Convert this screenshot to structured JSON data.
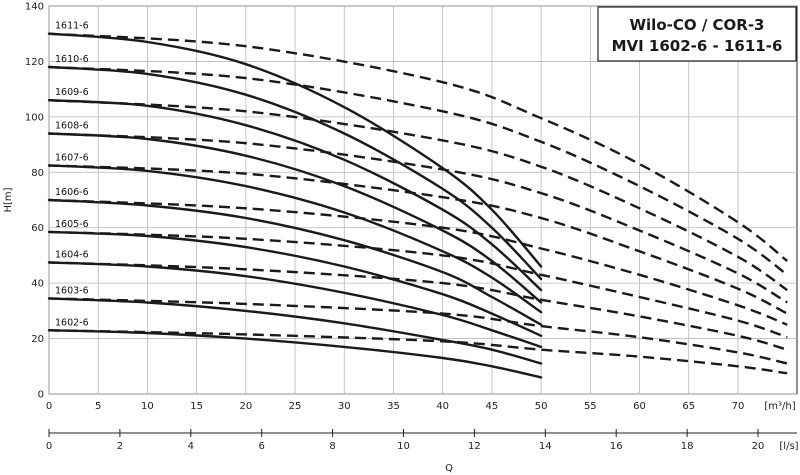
{
  "chart_data": {
    "type": "line",
    "title": [
      "Wilo-CO / COR-3",
      "MVI 1602-6 - 1611-6"
    ],
    "ylabel": "H[m]",
    "xlabel": "Q",
    "x_unit_m3h": "[m³/h]",
    "x_unit_ls": "[l/s]",
    "ylim": [
      0,
      140
    ],
    "xlim_m3h": [
      0,
      76
    ],
    "xlim_ls": [
      0,
      21.1
    ],
    "y_ticks": [
      0,
      20,
      40,
      60,
      80,
      100,
      120,
      140
    ],
    "x_ticks_m3h": [
      0,
      5,
      10,
      15,
      20,
      25,
      30,
      35,
      40,
      45,
      50,
      55,
      60,
      65,
      70
    ],
    "x_ticks_ls": [
      0,
      2,
      4,
      6,
      8,
      10,
      12,
      14,
      16,
      18,
      20
    ],
    "grid": true,
    "series": [
      {
        "name": "1602-6",
        "solid": [
          [
            0,
            23
          ],
          [
            10,
            22
          ],
          [
            20,
            20
          ],
          [
            30,
            17
          ],
          [
            40,
            13
          ],
          [
            45,
            10
          ],
          [
            50,
            6
          ]
        ],
        "dashed": [
          [
            0,
            23
          ],
          [
            20,
            21.5
          ],
          [
            40,
            19
          ],
          [
            50,
            16
          ],
          [
            60,
            13.5
          ],
          [
            70,
            10
          ],
          [
            75,
            7.5
          ]
        ]
      },
      {
        "name": "1603-6",
        "solid": [
          [
            0,
            34.5
          ],
          [
            10,
            33
          ],
          [
            20,
            30
          ],
          [
            30,
            25.5
          ],
          [
            40,
            19.5
          ],
          [
            45,
            16
          ],
          [
            50,
            11
          ]
        ],
        "dashed": [
          [
            0,
            34.5
          ],
          [
            20,
            32.5
          ],
          [
            40,
            29
          ],
          [
            50,
            24.5
          ],
          [
            60,
            20.5
          ],
          [
            70,
            15
          ],
          [
            75,
            11
          ]
        ]
      },
      {
        "name": "1604-6",
        "solid": [
          [
            0,
            47.5
          ],
          [
            10,
            46
          ],
          [
            20,
            42.5
          ],
          [
            30,
            36.5
          ],
          [
            40,
            28.5
          ],
          [
            45,
            23
          ],
          [
            50,
            17
          ]
        ],
        "dashed": [
          [
            0,
            47.5
          ],
          [
            20,
            45
          ],
          [
            40,
            40
          ],
          [
            50,
            34
          ],
          [
            60,
            28
          ],
          [
            70,
            21
          ],
          [
            75,
            16
          ]
        ]
      },
      {
        "name": "1605-6",
        "solid": [
          [
            0,
            58.5
          ],
          [
            10,
            57
          ],
          [
            20,
            53
          ],
          [
            30,
            46
          ],
          [
            40,
            36
          ],
          [
            45,
            29
          ],
          [
            50,
            21
          ]
        ],
        "dashed": [
          [
            0,
            58.5
          ],
          [
            20,
            56
          ],
          [
            40,
            50
          ],
          [
            50,
            43
          ],
          [
            60,
            35
          ],
          [
            70,
            26.5
          ],
          [
            75,
            20.5
          ]
        ]
      },
      {
        "name": "1606-6",
        "solid": [
          [
            0,
            70
          ],
          [
            10,
            68
          ],
          [
            20,
            63.5
          ],
          [
            30,
            55.5
          ],
          [
            40,
            44
          ],
          [
            45,
            35
          ],
          [
            50,
            25
          ]
        ],
        "dashed": [
          [
            0,
            70
          ],
          [
            20,
            67
          ],
          [
            40,
            60
          ],
          [
            50,
            52.5
          ],
          [
            60,
            43
          ],
          [
            70,
            32
          ],
          [
            75,
            25
          ]
        ]
      },
      {
        "name": "1607-6",
        "solid": [
          [
            0,
            82.5
          ],
          [
            10,
            80.5
          ],
          [
            20,
            75
          ],
          [
            30,
            65.5
          ],
          [
            40,
            51.5
          ],
          [
            45,
            42
          ],
          [
            50,
            29.5
          ]
        ],
        "dashed": [
          [
            0,
            82.5
          ],
          [
            20,
            79.5
          ],
          [
            40,
            71
          ],
          [
            50,
            63.5
          ],
          [
            60,
            51.5
          ],
          [
            70,
            38
          ],
          [
            75,
            29
          ]
        ]
      },
      {
        "name": "1608-6",
        "solid": [
          [
            0,
            94
          ],
          [
            10,
            92
          ],
          [
            20,
            86
          ],
          [
            30,
            75
          ],
          [
            40,
            59
          ],
          [
            45,
            48
          ],
          [
            50,
            33
          ]
        ],
        "dashed": [
          [
            0,
            94
          ],
          [
            20,
            90.5
          ],
          [
            40,
            81
          ],
          [
            50,
            72.5
          ],
          [
            60,
            59
          ],
          [
            70,
            43.5
          ],
          [
            75,
            33
          ]
        ]
      },
      {
        "name": "1609-6",
        "solid": [
          [
            0,
            106
          ],
          [
            10,
            104
          ],
          [
            20,
            97
          ],
          [
            30,
            84.5
          ],
          [
            40,
            66.5
          ],
          [
            45,
            54
          ],
          [
            50,
            37.5
          ]
        ],
        "dashed": [
          [
            0,
            106
          ],
          [
            20,
            102
          ],
          [
            40,
            91.5
          ],
          [
            50,
            82
          ],
          [
            60,
            67
          ],
          [
            70,
            49.5
          ],
          [
            75,
            37.5
          ]
        ]
      },
      {
        "name": "1610-6",
        "solid": [
          [
            0,
            118
          ],
          [
            10,
            115.5
          ],
          [
            20,
            108
          ],
          [
            30,
            94
          ],
          [
            40,
            74
          ],
          [
            45,
            60
          ],
          [
            50,
            41.5
          ]
        ],
        "dashed": [
          [
            0,
            118
          ],
          [
            20,
            114
          ],
          [
            40,
            102
          ],
          [
            50,
            91
          ],
          [
            60,
            75
          ],
          [
            70,
            56
          ],
          [
            75,
            43
          ]
        ]
      },
      {
        "name": "1611-6",
        "solid": [
          [
            0,
            130
          ],
          [
            10,
            127
          ],
          [
            20,
            119
          ],
          [
            30,
            103.5
          ],
          [
            40,
            81.5
          ],
          [
            45,
            66.5
          ],
          [
            50,
            46
          ]
        ],
        "dashed": [
          [
            0,
            130
          ],
          [
            20,
            125.5
          ],
          [
            40,
            112.5
          ],
          [
            50,
            99.5
          ],
          [
            60,
            83
          ],
          [
            70,
            62
          ],
          [
            75,
            48
          ]
        ]
      }
    ]
  }
}
